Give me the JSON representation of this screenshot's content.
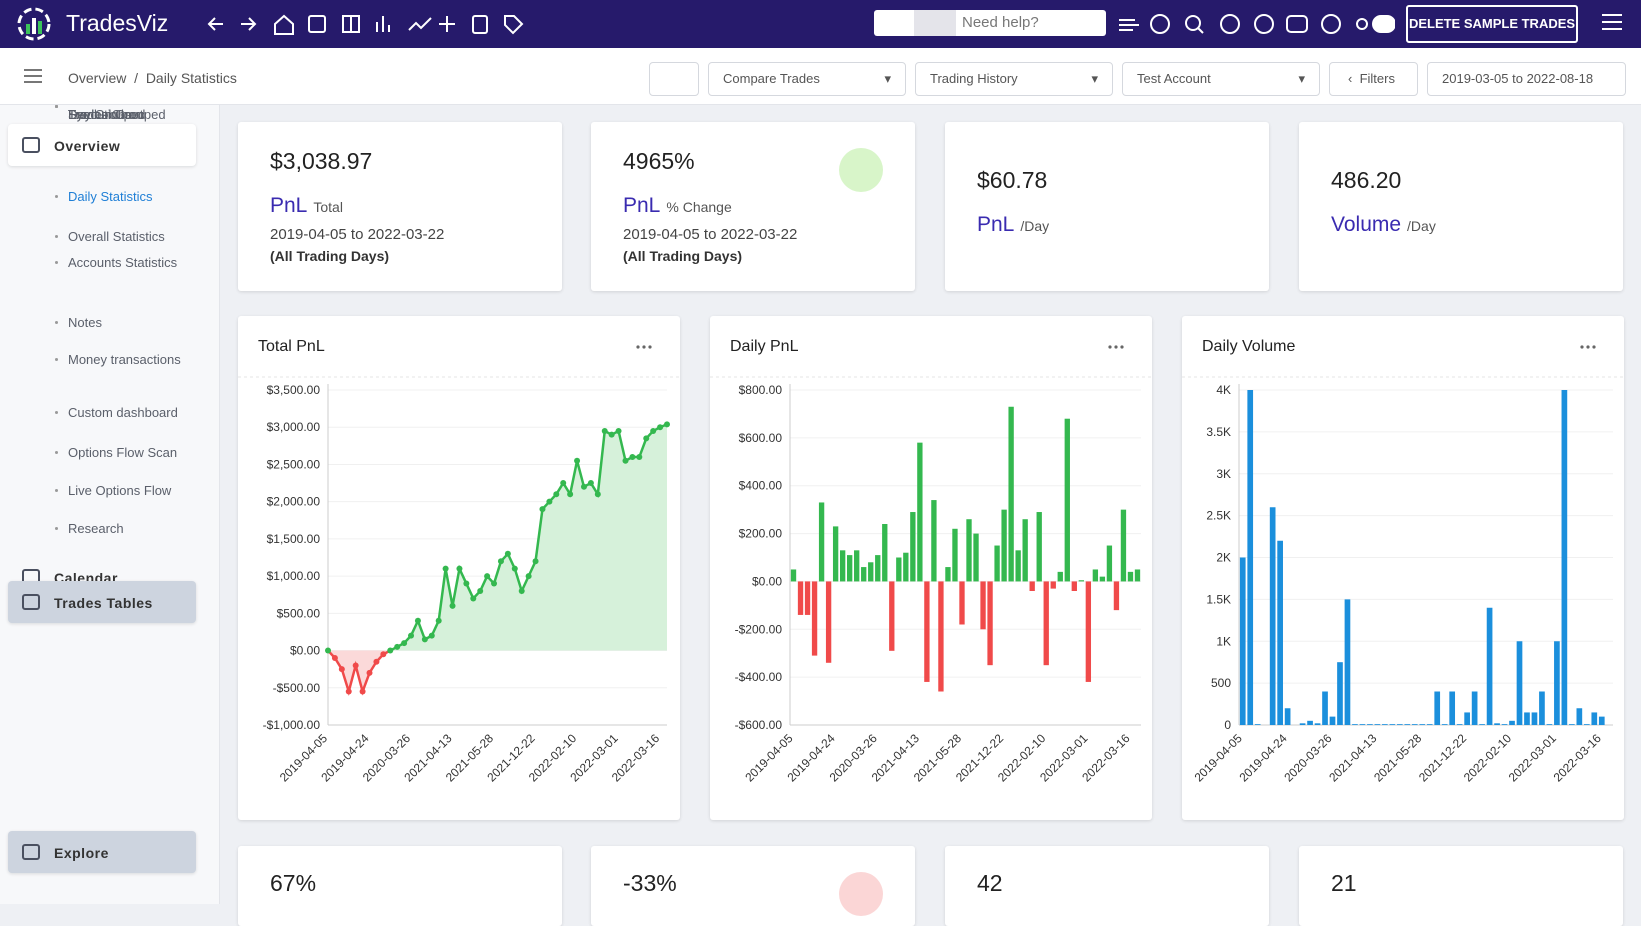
{
  "nav": {
    "brand": "TradesViz",
    "search": "Need help?",
    "button": "DELETE SAMPLE TRADES"
  },
  "breadcrumb": [
    "Overview",
    "Daily Statistics"
  ],
  "toolbar": {
    "compare": "Compare Trades",
    "history": "Trading History",
    "account": "Test Account",
    "filters": "Filters",
    "range": "2019-03-05 to 2022-08-18"
  },
  "sidebar": [
    {
      "label": "Overview",
      "children": [
        "Daily Statistics",
        "Overall Statistics",
        "Accounts Statistics",
        "Notes",
        "Money transactions",
        "Custom dashboard",
        "Options Flow Scan",
        "Live Options Flow",
        "Research"
      ]
    },
    {
      "label": "Calendar",
      "children": []
    },
    {
      "label": "Trades Tables",
      "children": [
        "Trades",
        "Symbol Grouped",
        "Day Grouped",
        "Executions",
        "Trades Chart"
      ]
    },
    {
      "label": "Explore",
      "children": []
    }
  ],
  "stats": [
    {
      "value": "$3,038.97",
      "label": "PnL",
      "sub": "Total",
      "range": "2019-04-05 to 2022-03-22",
      "note": "(All Trading Days)"
    },
    {
      "value": "4965%",
      "label": "PnL",
      "sub": "% Change",
      "range": "2019-04-05 to 2022-03-22",
      "note": "(All Trading Days)"
    },
    {
      "value": "$60.78",
      "label": "PnL",
      "sub": "/Day"
    },
    {
      "value": "486.20",
      "label": "Volume",
      "sub": "/Day"
    }
  ],
  "bottom_stats": [
    "67%",
    "-33%",
    "42",
    "21"
  ],
  "chart_data": [
    {
      "type": "line",
      "title": "Total PnL",
      "color": "#34b84f",
      "negative_color": "#f04a4a",
      "area": true,
      "categories": [
        "2019-04-05",
        null,
        null,
        null,
        null,
        null,
        "2019-04-24",
        null,
        null,
        null,
        null,
        null,
        "2020-03-26",
        null,
        null,
        null,
        null,
        null,
        "2021-04-13",
        null,
        null,
        null,
        null,
        null,
        "2021-05-28",
        null,
        null,
        null,
        null,
        null,
        "2021-12-22",
        null,
        null,
        null,
        null,
        null,
        "2022-02-10",
        null,
        null,
        null,
        null,
        null,
        "2022-03-01",
        null,
        null,
        null,
        null,
        null,
        "2022-03-16",
        null
      ],
      "values": [
        0,
        -100,
        -250,
        -550,
        -200,
        -550,
        -300,
        -150,
        -50,
        0,
        50,
        100,
        200,
        400,
        150,
        200,
        400,
        1100,
        600,
        1100,
        900,
        700,
        800,
        1000,
        900,
        1200,
        1300,
        1100,
        800,
        1000,
        1200,
        1900,
        2000,
        2100,
        2250,
        2100,
        2550,
        2200,
        2250,
        2100,
        2950,
        2900,
        2950,
        2550,
        2600,
        2600,
        2850,
        2950,
        3000,
        3038.97
      ],
      "ylim": [
        -1000,
        3500
      ],
      "yticks": [
        {
          "value": -1000,
          "label": "-$1,000.00"
        },
        {
          "value": -500,
          "label": "-$500.00"
        },
        {
          "value": 0,
          "label": "$0.00"
        },
        {
          "value": 500,
          "label": "$500.00"
        },
        {
          "value": 1000,
          "label": "$1,000.00"
        },
        {
          "value": 1500,
          "label": "$1,500.00"
        },
        {
          "value": 2000,
          "label": "$2,000.00"
        },
        {
          "value": 2500,
          "label": "$2,500.00"
        },
        {
          "value": 3000,
          "label": "$3,000.00"
        },
        {
          "value": 3500,
          "label": "$3,500.00"
        }
      ],
      "grid": true
    },
    {
      "type": "bar",
      "title": "Daily PnL",
      "color": "#34b84f",
      "negative_color": "#f04a4a",
      "categories": [
        "2019-04-05",
        null,
        null,
        null,
        null,
        null,
        "2019-04-24",
        null,
        null,
        null,
        null,
        null,
        "2020-03-26",
        null,
        null,
        null,
        null,
        null,
        "2021-04-13",
        null,
        null,
        null,
        null,
        null,
        "2021-05-28",
        null,
        null,
        null,
        null,
        null,
        "2021-12-22",
        null,
        null,
        null,
        null,
        null,
        "2022-02-10",
        null,
        null,
        null,
        null,
        null,
        "2022-03-01",
        null,
        null,
        null,
        null,
        null,
        "2022-03-16",
        null
      ],
      "values": [
        50,
        -140,
        -140,
        -310,
        330,
        -340,
        230,
        130,
        110,
        130,
        60,
        80,
        110,
        240,
        -290,
        100,
        120,
        290,
        580,
        -420,
        340,
        -460,
        60,
        220,
        -180,
        260,
        200,
        -200,
        -350,
        150,
        300,
        730,
        130,
        260,
        -40,
        290,
        -350,
        -30,
        40,
        680,
        -40,
        5,
        -420,
        50,
        20,
        150,
        -120,
        300,
        40,
        50
      ],
      "ylim": [
        -600,
        800
      ],
      "yticks": [
        {
          "value": -600,
          "label": "-$600.00"
        },
        {
          "value": -400,
          "label": "-$400.00"
        },
        {
          "value": -200,
          "label": "-$200.00"
        },
        {
          "value": 0,
          "label": "$0.00"
        },
        {
          "value": 200,
          "label": "$200.00"
        },
        {
          "value": 400,
          "label": "$400.00"
        },
        {
          "value": 600,
          "label": "$600.00"
        },
        {
          "value": 800,
          "label": "$800.00"
        }
      ],
      "grid": true
    },
    {
      "type": "bar",
      "title": "Daily Volume",
      "color": "#1b8fdc",
      "categories": [
        "2019-04-05",
        null,
        null,
        null,
        null,
        null,
        "2019-04-24",
        null,
        null,
        null,
        null,
        null,
        "2020-03-26",
        null,
        null,
        null,
        null,
        null,
        "2021-04-13",
        null,
        null,
        null,
        null,
        null,
        "2021-05-28",
        null,
        null,
        null,
        null,
        null,
        "2021-12-22",
        null,
        null,
        null,
        null,
        null,
        "2022-02-10",
        null,
        null,
        null,
        null,
        null,
        "2022-03-01",
        null,
        null,
        null,
        null,
        null,
        "2022-03-16",
        null
      ],
      "values": [
        2000,
        4000,
        10,
        0,
        2600,
        2200,
        200,
        0,
        20,
        50,
        20,
        400,
        100,
        750,
        1500,
        10,
        10,
        10,
        10,
        10,
        10,
        10,
        10,
        10,
        10,
        10,
        400,
        10,
        400,
        10,
        150,
        400,
        10,
        1400,
        20,
        10,
        50,
        1000,
        150,
        150,
        400,
        10,
        1000,
        4000,
        10,
        200,
        10,
        150,
        100,
        0
      ],
      "ylim": [
        0,
        4000
      ],
      "yticks": [
        0,
        500,
        {
          "value": 1000,
          "label": "1K"
        },
        {
          "value": 1500,
          "label": "1.5K"
        },
        {
          "value": 2000,
          "label": "2K"
        },
        {
          "value": 2500,
          "label": "2.5K"
        },
        {
          "value": 3000,
          "label": "3K"
        },
        {
          "value": 3500,
          "label": "3.5K"
        },
        {
          "value": 4000,
          "label": "4K"
        }
      ],
      "grid": true
    }
  ]
}
